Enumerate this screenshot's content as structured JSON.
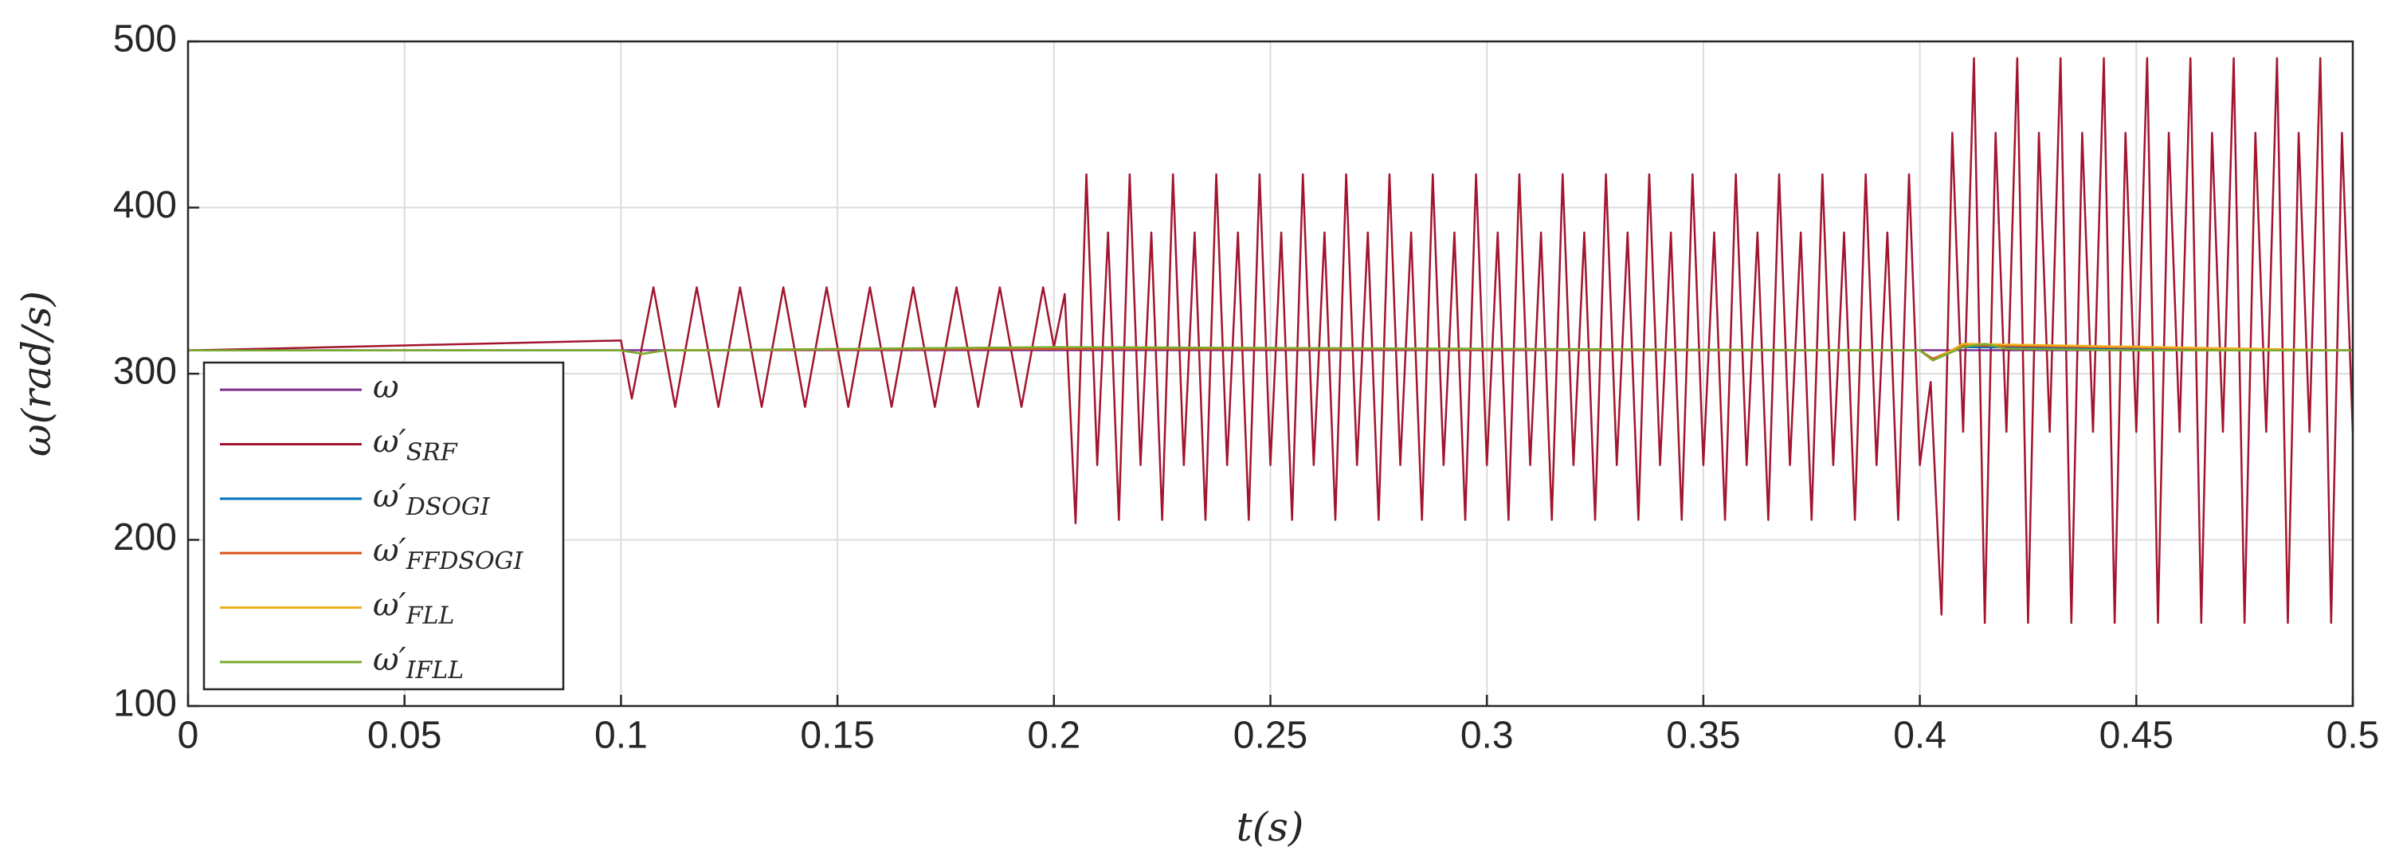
{
  "chart_data": {
    "type": "line",
    "xlabel": "t(s)",
    "ylabel": "ω(rad/s)",
    "xlim": [
      0,
      0.5
    ],
    "xticks": [
      0,
      0.05,
      0.1,
      0.15,
      0.2,
      0.25,
      0.3,
      0.35,
      0.4,
      0.45,
      0.5
    ],
    "ylim": [
      100,
      500
    ],
    "yticks": [
      100,
      200,
      300,
      400,
      500
    ],
    "grid": true,
    "legend": "left",
    "series": [
      {
        "name": "ω",
        "color": "#7E2F8E",
        "x": [
          0,
          0.5
        ],
        "values": [
          314.16,
          314.16
        ]
      },
      {
        "name": "ω′",
        "subscript": "SRF",
        "color": "#A2142F",
        "x": [
          0,
          0.1,
          0.1025,
          0.1075,
          0.1125,
          0.1175,
          0.1225,
          0.1275,
          0.1325,
          0.1375,
          0.1425,
          0.1475,
          0.1525,
          0.1575,
          0.1625,
          0.1675,
          0.1725,
          0.1775,
          0.1825,
          0.1875,
          0.1925,
          0.1975,
          0.2,
          0.2025,
          0.205,
          0.2075,
          0.21,
          0.2125,
          0.215,
          0.2175,
          0.22,
          0.2225,
          0.225,
          0.2275,
          0.23,
          0.2325,
          0.235,
          0.2375,
          0.24,
          0.2425,
          0.245,
          0.2475,
          0.25,
          0.2525,
          0.255,
          0.2575,
          0.26,
          0.2625,
          0.265,
          0.2675,
          0.27,
          0.2725,
          0.275,
          0.2775,
          0.28,
          0.2825,
          0.285,
          0.2875,
          0.29,
          0.2925,
          0.295,
          0.2975,
          0.3,
          0.3025,
          0.305,
          0.3075,
          0.31,
          0.3125,
          0.315,
          0.3175,
          0.32,
          0.3225,
          0.325,
          0.3275,
          0.33,
          0.3325,
          0.335,
          0.3375,
          0.34,
          0.3425,
          0.345,
          0.3475,
          0.35,
          0.3525,
          0.355,
          0.3575,
          0.36,
          0.3625,
          0.365,
          0.3675,
          0.37,
          0.3725,
          0.375,
          0.3775,
          0.38,
          0.3825,
          0.385,
          0.3875,
          0.39,
          0.3925,
          0.395,
          0.3975,
          0.4,
          0.4025,
          0.405,
          0.4075,
          0.41,
          0.4125,
          0.415,
          0.4175,
          0.42,
          0.4225,
          0.425,
          0.4275,
          0.43,
          0.4325,
          0.435,
          0.4375,
          0.44,
          0.4425,
          0.445,
          0.4475,
          0.45,
          0.4525,
          0.455,
          0.4575,
          0.46,
          0.4625,
          0.465,
          0.4675,
          0.47,
          0.4725,
          0.475,
          0.4775,
          0.48,
          0.4825,
          0.485,
          0.4875,
          0.49,
          0.4925,
          0.495,
          0.4975,
          0.5
        ],
        "values": [
          314,
          320,
          285,
          352,
          280,
          352,
          280,
          352,
          280,
          352,
          280,
          352,
          280,
          352,
          280,
          352,
          280,
          352,
          280,
          352,
          280,
          352,
          316,
          348,
          210,
          420,
          245,
          385,
          212,
          420,
          245,
          385,
          212,
          420,
          245,
          385,
          212,
          420,
          245,
          385,
          212,
          420,
          245,
          385,
          212,
          420,
          245,
          385,
          212,
          420,
          245,
          385,
          212,
          420,
          245,
          385,
          212,
          420,
          245,
          385,
          212,
          420,
          245,
          385,
          212,
          420,
          245,
          385,
          212,
          420,
          245,
          385,
          212,
          420,
          245,
          385,
          212,
          420,
          245,
          385,
          212,
          420,
          245,
          385,
          212,
          420,
          245,
          385,
          212,
          420,
          245,
          385,
          212,
          420,
          245,
          385,
          212,
          420,
          245,
          385,
          212,
          420,
          245,
          295,
          155,
          445,
          265,
          490,
          150,
          445,
          265,
          490,
          150,
          445,
          265,
          490,
          150,
          445,
          265,
          490,
          150,
          445,
          265,
          490,
          150,
          445,
          265,
          490,
          150,
          445,
          265,
          490,
          150,
          445,
          265,
          490,
          150,
          445,
          265,
          490,
          150,
          445,
          265
        ]
      },
      {
        "name": "ω′",
        "subscript": "DSOGI",
        "color": "#0072BD",
        "x": [
          0,
          0.1,
          0.105,
          0.11,
          0.2,
          0.4,
          0.403,
          0.41,
          0.5
        ],
        "values": [
          314,
          314,
          312,
          314,
          315,
          314,
          309,
          316,
          314
        ]
      },
      {
        "name": "ω′",
        "subscript": "FFDSOGI",
        "color": "#D95319",
        "x": [
          0,
          0.1,
          0.105,
          0.11,
          0.2,
          0.4,
          0.403,
          0.41,
          0.5
        ],
        "values": [
          314,
          314,
          312,
          314,
          315,
          314,
          309,
          317,
          314
        ]
      },
      {
        "name": "ω′",
        "subscript": "FLL",
        "color": "#EDB120",
        "x": [
          0,
          0.1,
          0.105,
          0.11,
          0.2,
          0.4,
          0.403,
          0.41,
          0.5
        ],
        "values": [
          314,
          314,
          312,
          314,
          316,
          314,
          308,
          318,
          314
        ]
      },
      {
        "name": "ω′",
        "subscript": "IFLL",
        "color": "#77AC30",
        "x": [
          0,
          0.1,
          0.105,
          0.11,
          0.2,
          0.3,
          0.4,
          0.403,
          0.41,
          0.415,
          0.42,
          0.45,
          0.5
        ],
        "values": [
          314,
          314,
          312,
          314,
          316,
          315,
          314,
          308,
          316,
          318,
          315,
          314,
          314
        ]
      }
    ]
  }
}
